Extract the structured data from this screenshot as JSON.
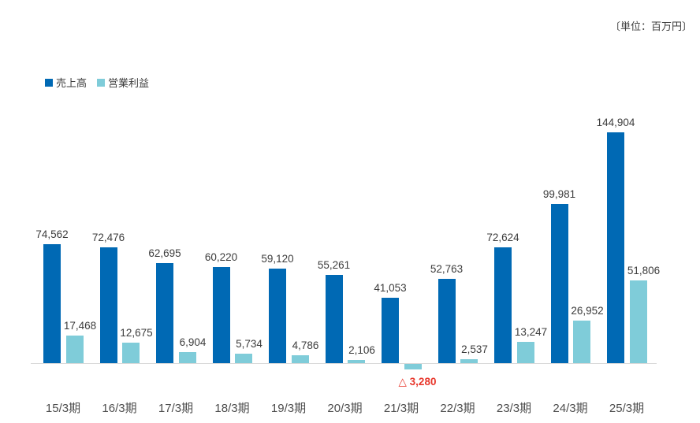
{
  "unit_label": "〔単位：百万円〕",
  "legend": {
    "sales_label": "売上高",
    "profit_label": "営業利益"
  },
  "colors": {
    "sales": "#0069b4",
    "profit": "#7fccd9",
    "negative_label": "#e8382d",
    "axis_line": "#d9d9d9",
    "value_text": "#3c3c3c",
    "axis_text": "#4d4d4d"
  },
  "chart_data": {
    "type": "bar",
    "title": "",
    "unit": "百万円",
    "categories": [
      "15/3期",
      "16/3期",
      "17/3期",
      "18/3期",
      "19/3期",
      "20/3期",
      "21/3期",
      "22/3期",
      "23/3期",
      "24/3期",
      "25/3期"
    ],
    "series": [
      {
        "name": "売上高",
        "color": "#0069b4",
        "values": [
          74562,
          72476,
          62695,
          60220,
          59120,
          55261,
          41053,
          52763,
          72624,
          99981,
          144904
        ],
        "labels": [
          "74,562",
          "72,476",
          "62,695",
          "60,220",
          "59,120",
          "55,261",
          "41,053",
          "52,763",
          "72,624",
          "99,981",
          "144,904"
        ]
      },
      {
        "name": "営業利益",
        "color": "#7fccd9",
        "values": [
          17468,
          12675,
          6904,
          5734,
          4786,
          2106,
          -3280,
          2537,
          13247,
          26952,
          51806
        ],
        "labels": [
          "17,468",
          "12,675",
          "6,904",
          "5,734",
          "4,786",
          "2,106",
          "△ 3,280",
          "2,537",
          "13,247",
          "26,952",
          "51,806"
        ]
      }
    ],
    "ylim": [
      -8000,
      160000
    ],
    "grid": false,
    "legend_position": "top-left",
    "negative_marker": "△"
  }
}
